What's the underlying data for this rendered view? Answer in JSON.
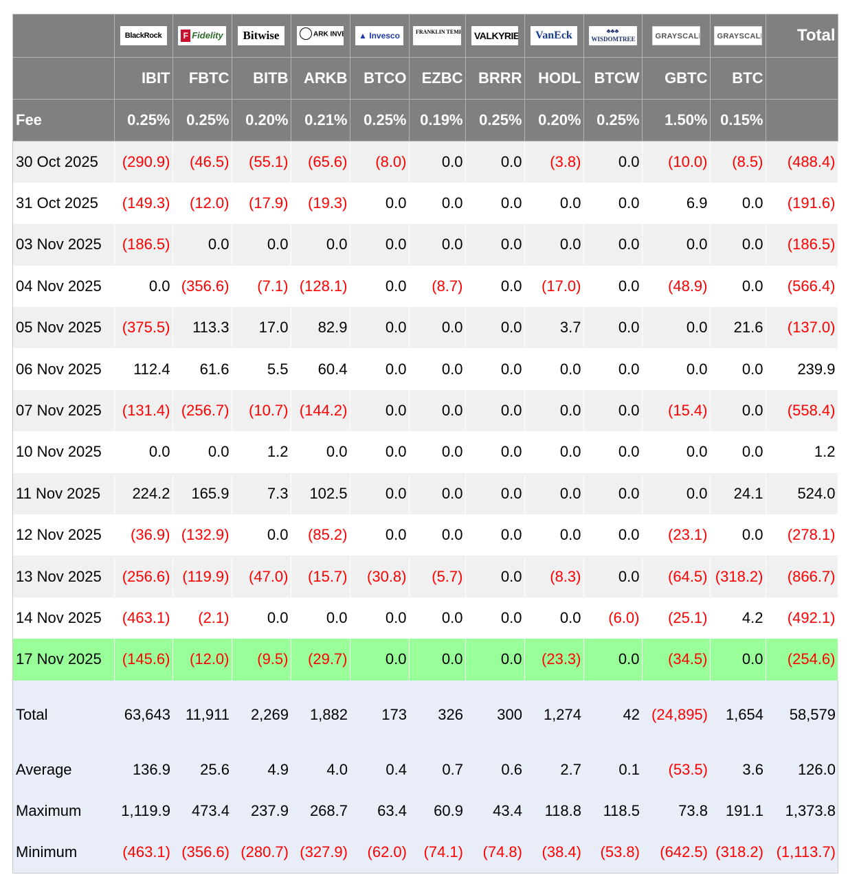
{
  "header": {
    "fee_label": "Fee",
    "total_label": "Total",
    "funds": [
      {
        "issuer": "BlackRock",
        "logo_text": "BlackRock",
        "ticker": "IBIT",
        "fee": "0.25%"
      },
      {
        "issuer": "Fidelity",
        "logo_text": "Fidelity",
        "ticker": "FBTC",
        "fee": "0.25%"
      },
      {
        "issuer": "Bitwise",
        "logo_text": "Bitwise",
        "ticker": "BITB",
        "fee": "0.20%"
      },
      {
        "issuer": "ARK Invest",
        "logo_text": "ARK INVEST",
        "ticker": "ARKB",
        "fee": "0.21%"
      },
      {
        "issuer": "Invesco",
        "logo_text": "Invesco",
        "ticker": "BTCO",
        "fee": "0.25%"
      },
      {
        "issuer": "Franklin Templeton",
        "logo_text": "FRANKLIN TEMPLETON",
        "ticker": "EZBC",
        "fee": "0.19%"
      },
      {
        "issuer": "Valkyrie",
        "logo_text": "VALKYRIE",
        "ticker": "BRRR",
        "fee": "0.25%"
      },
      {
        "issuer": "VanEck",
        "logo_text": "VanEck",
        "ticker": "HODL",
        "fee": "0.20%"
      },
      {
        "issuer": "WisdomTree",
        "logo_text": "WISDOMTREE",
        "ticker": "BTCW",
        "fee": "0.25%"
      },
      {
        "issuer": "Grayscale",
        "logo_text": "GRAYSCALE",
        "ticker": "GBTC",
        "fee": "1.50%"
      },
      {
        "issuer": "Grayscale",
        "logo_text": "GRAYSCALE",
        "ticker": "BTC",
        "fee": "0.15%"
      }
    ]
  },
  "rows": [
    {
      "date": "30 Oct 2025",
      "values": [
        "(290.9)",
        "(46.5)",
        "(55.1)",
        "(65.6)",
        "(8.0)",
        "0.0",
        "0.0",
        "(3.8)",
        "0.0",
        "(10.0)",
        "(8.5)",
        "(488.4)"
      ]
    },
    {
      "date": "31 Oct 2025",
      "values": [
        "(149.3)",
        "(12.0)",
        "(17.9)",
        "(19.3)",
        "0.0",
        "0.0",
        "0.0",
        "0.0",
        "0.0",
        "6.9",
        "0.0",
        "(191.6)"
      ]
    },
    {
      "date": "03 Nov 2025",
      "values": [
        "(186.5)",
        "0.0",
        "0.0",
        "0.0",
        "0.0",
        "0.0",
        "0.0",
        "0.0",
        "0.0",
        "0.0",
        "0.0",
        "(186.5)"
      ]
    },
    {
      "date": "04 Nov 2025",
      "values": [
        "0.0",
        "(356.6)",
        "(7.1)",
        "(128.1)",
        "0.0",
        "(8.7)",
        "0.0",
        "(17.0)",
        "0.0",
        "(48.9)",
        "0.0",
        "(566.4)"
      ]
    },
    {
      "date": "05 Nov 2025",
      "values": [
        "(375.5)",
        "113.3",
        "17.0",
        "82.9",
        "0.0",
        "0.0",
        "0.0",
        "3.7",
        "0.0",
        "0.0",
        "21.6",
        "(137.0)"
      ]
    },
    {
      "date": "06 Nov 2025",
      "values": [
        "112.4",
        "61.6",
        "5.5",
        "60.4",
        "0.0",
        "0.0",
        "0.0",
        "0.0",
        "0.0",
        "0.0",
        "0.0",
        "239.9"
      ]
    },
    {
      "date": "07 Nov 2025",
      "values": [
        "(131.4)",
        "(256.7)",
        "(10.7)",
        "(144.2)",
        "0.0",
        "0.0",
        "0.0",
        "0.0",
        "0.0",
        "(15.4)",
        "0.0",
        "(558.4)"
      ]
    },
    {
      "date": "10 Nov 2025",
      "values": [
        "0.0",
        "0.0",
        "1.2",
        "0.0",
        "0.0",
        "0.0",
        "0.0",
        "0.0",
        "0.0",
        "0.0",
        "0.0",
        "1.2"
      ]
    },
    {
      "date": "11 Nov 2025",
      "values": [
        "224.2",
        "165.9",
        "7.3",
        "102.5",
        "0.0",
        "0.0",
        "0.0",
        "0.0",
        "0.0",
        "0.0",
        "24.1",
        "524.0"
      ]
    },
    {
      "date": "12 Nov 2025",
      "values": [
        "(36.9)",
        "(132.9)",
        "0.0",
        "(85.2)",
        "0.0",
        "0.0",
        "0.0",
        "0.0",
        "0.0",
        "(23.1)",
        "0.0",
        "(278.1)"
      ]
    },
    {
      "date": "13 Nov 2025",
      "values": [
        "(256.6)",
        "(119.9)",
        "(47.0)",
        "(15.7)",
        "(30.8)",
        "(5.7)",
        "0.0",
        "(8.3)",
        "0.0",
        "(64.5)",
        "(318.2)",
        "(866.7)"
      ]
    },
    {
      "date": "14 Nov 2025",
      "values": [
        "(463.1)",
        "(2.1)",
        "0.0",
        "0.0",
        "0.0",
        "0.0",
        "0.0",
        "0.0",
        "(6.0)",
        "(25.1)",
        "4.2",
        "(492.1)"
      ]
    },
    {
      "date": "17 Nov 2025",
      "values": [
        "(145.6)",
        "(12.0)",
        "(9.5)",
        "(29.7)",
        "0.0",
        "0.0",
        "0.0",
        "(23.3)",
        "0.0",
        "(34.5)",
        "0.0",
        "(254.6)"
      ]
    }
  ],
  "stats": [
    {
      "label": "Total",
      "values": [
        "63,643",
        "11,911",
        "2,269",
        "1,882",
        "173",
        "326",
        "300",
        "1,274",
        "42",
        "(24,895)",
        "1,654",
        "58,579"
      ]
    },
    {
      "label": "Average",
      "values": [
        "136.9",
        "25.6",
        "4.9",
        "4.0",
        "0.4",
        "0.7",
        "0.6",
        "2.7",
        "0.1",
        "(53.5)",
        "3.6",
        "126.0"
      ]
    },
    {
      "label": "Maximum",
      "values": [
        "1,119.9",
        "473.4",
        "237.9",
        "268.7",
        "63.4",
        "60.9",
        "43.4",
        "118.8",
        "118.5",
        "73.8",
        "191.1",
        "1,373.8"
      ]
    },
    {
      "label": "Minimum",
      "values": [
        "(463.1)",
        "(356.6)",
        "(280.7)",
        "(327.9)",
        "(62.0)",
        "(74.1)",
        "(74.8)",
        "(38.4)",
        "(53.8)",
        "(642.5)",
        "(318.2)",
        "(1,113.7)"
      ]
    }
  ],
  "colors": {
    "header_bg": "#808080",
    "negative": "#ff0000",
    "highlight_row": "#99ff99",
    "stats_bg": "#e9edf7"
  }
}
